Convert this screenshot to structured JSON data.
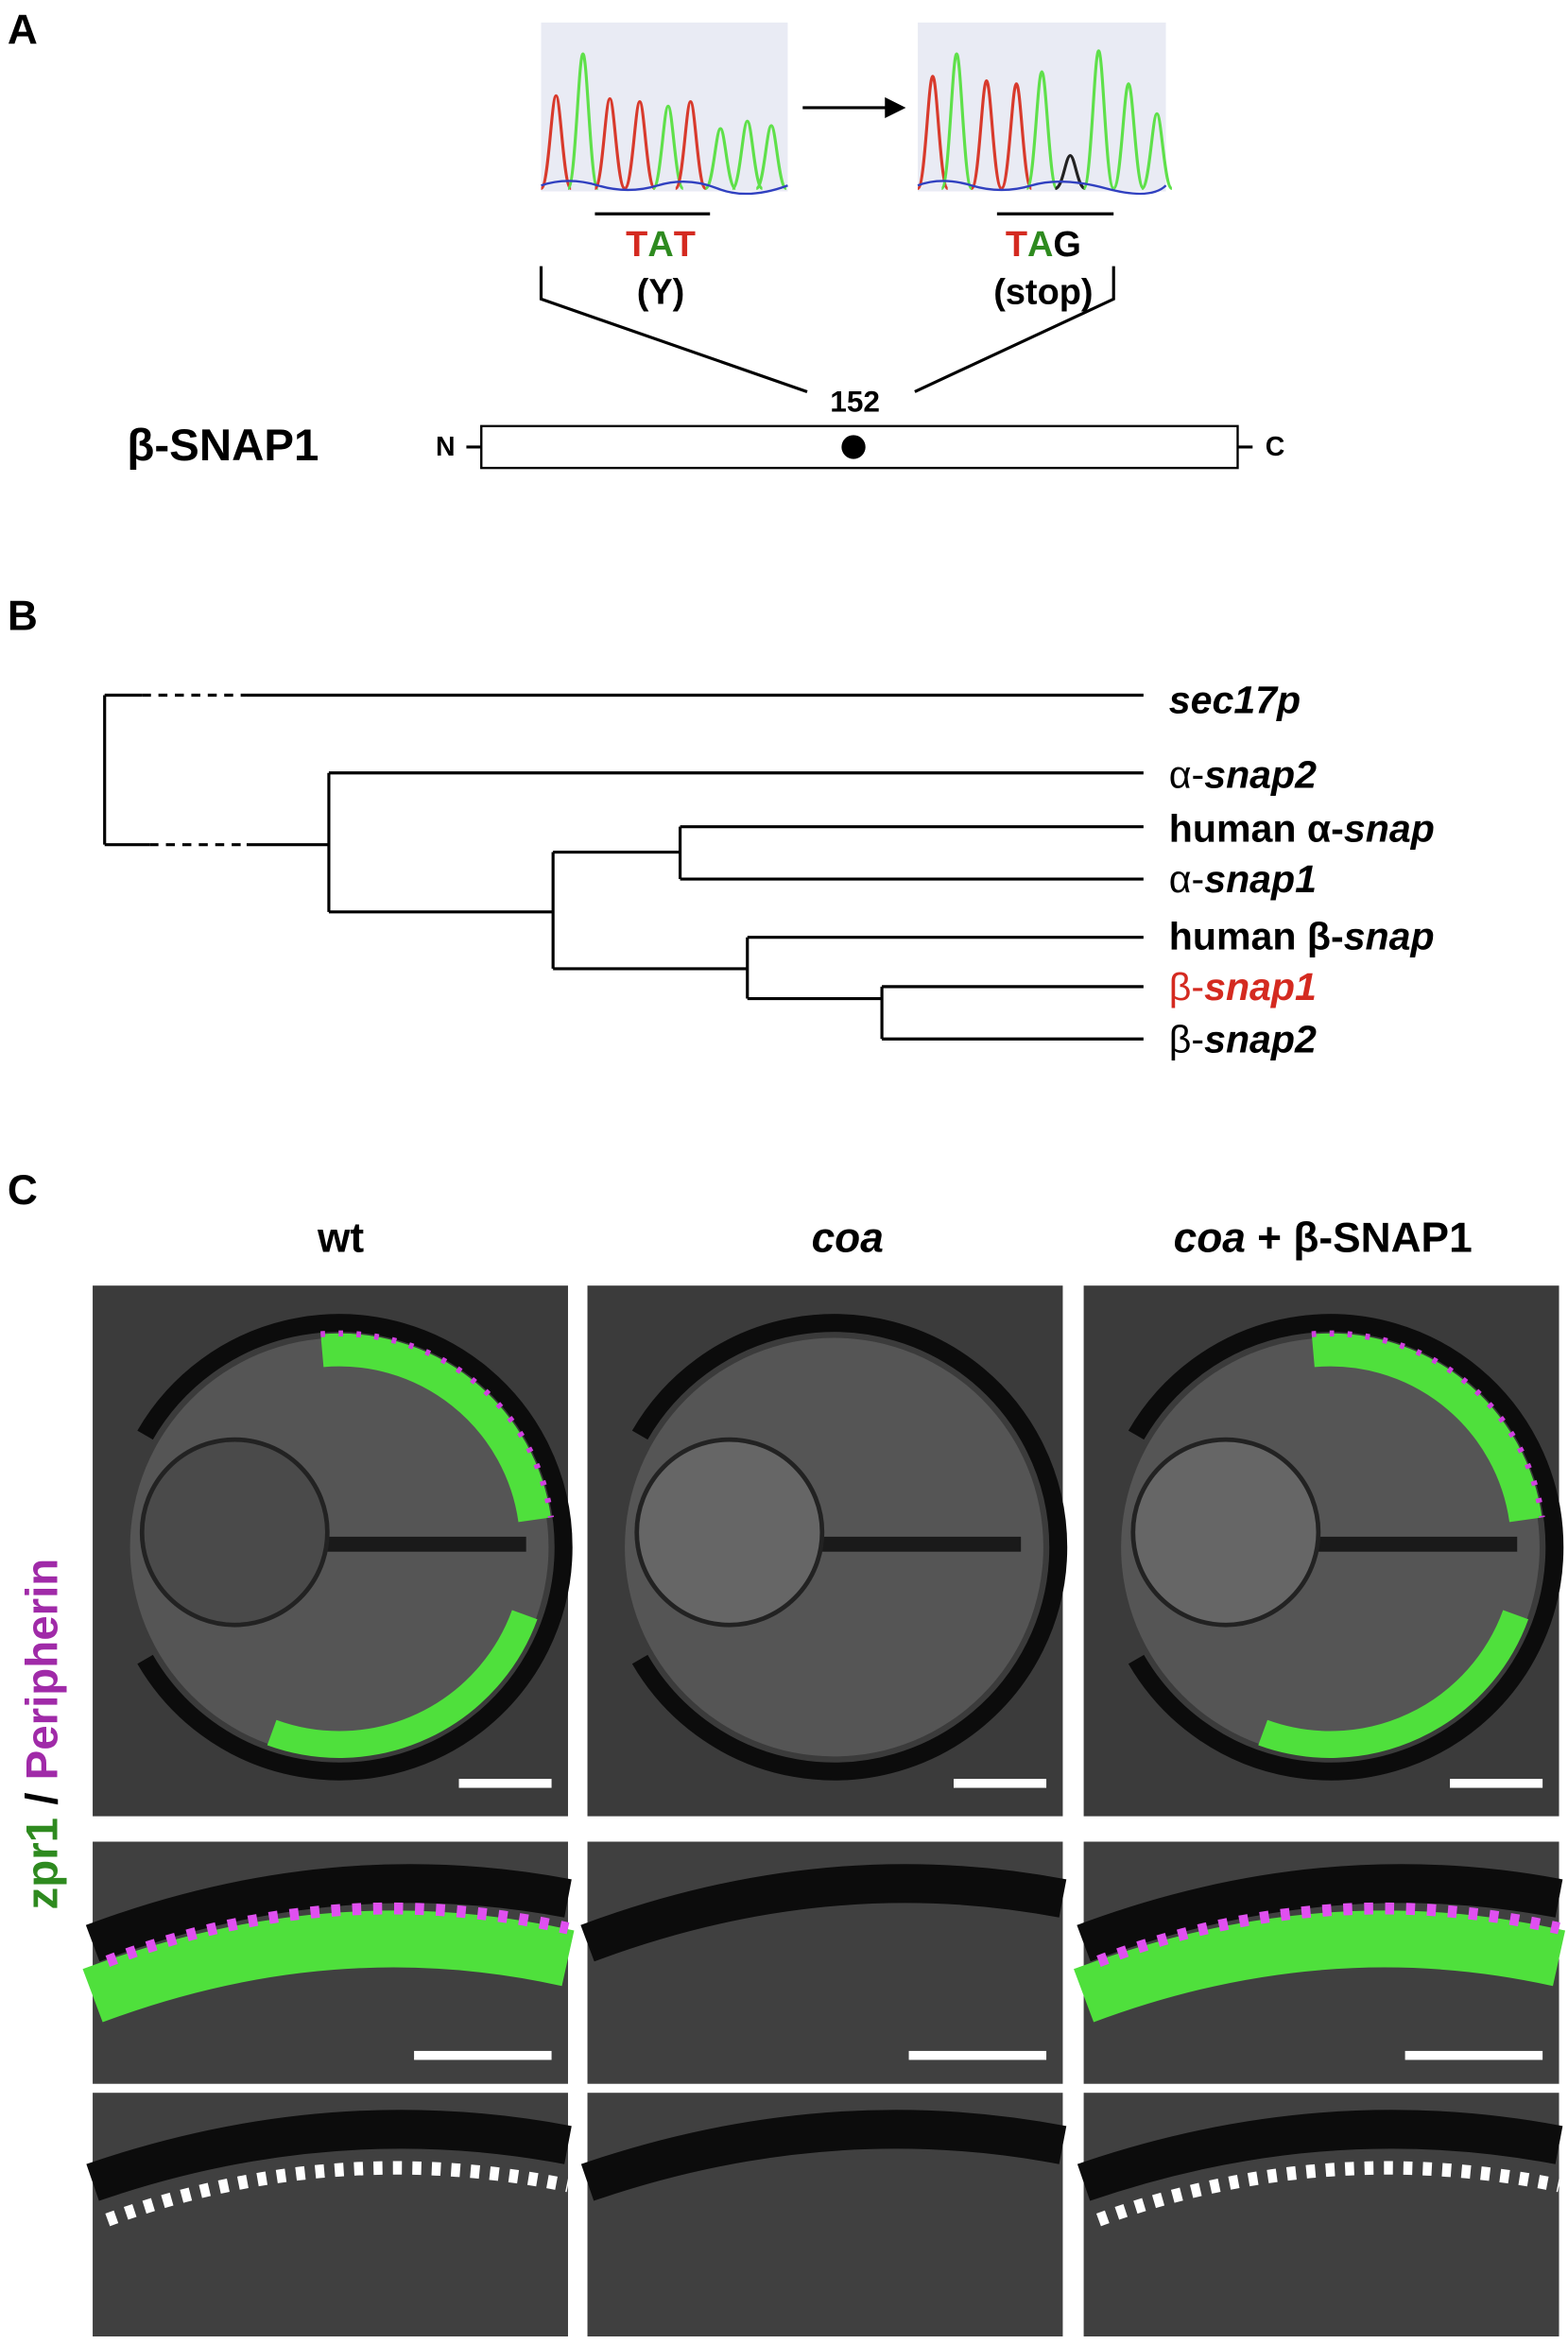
{
  "panel_a": {
    "label": "A",
    "chromatograms": [
      {
        "codon": [
          "T",
          "A",
          "T"
        ],
        "residue": "(Y)"
      },
      {
        "codon": [
          "T",
          "A",
          "G"
        ],
        "residue": "(stop)"
      }
    ],
    "position": "152",
    "protein": "β-SNAP1",
    "n_terminus": "N",
    "c_terminus": "C"
  },
  "panel_b": {
    "label": "B",
    "leaves": [
      {
        "gene": "sec17p"
      },
      {
        "prefix": "α-",
        "gene": "snap2"
      },
      {
        "prefix": "human α-",
        "gene": "snap"
      },
      {
        "prefix": "α-",
        "gene": "snap1"
      },
      {
        "prefix": "human β-",
        "gene": "snap"
      },
      {
        "prefix": "β-",
        "gene": "snap1",
        "highlight": true
      },
      {
        "prefix": "β-",
        "gene": "snap2"
      }
    ]
  },
  "panel_c": {
    "label": "C",
    "columns": [
      {
        "text": "wt"
      },
      {
        "italic": "coa"
      },
      {
        "italic": "coa",
        "rest": "+ β-SNAP1"
      }
    ],
    "stain": {
      "green": "zpr1",
      "separator": "/",
      "magenta": "Peripherin"
    }
  }
}
